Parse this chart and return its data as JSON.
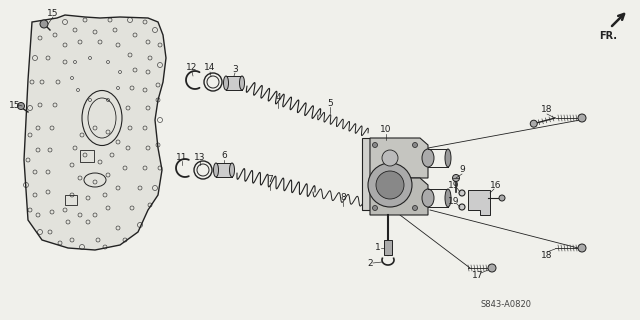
{
  "bg_color": "#f0f0eb",
  "line_color": "#222222",
  "watermark": "S843-A0820",
  "fr_label": "FR.",
  "figsize": [
    6.4,
    3.2
  ],
  "dpi": 100,
  "plate_outline_x": [
    28,
    60,
    70,
    90,
    155,
    168,
    170,
    165,
    160,
    158,
    162,
    158,
    148,
    90,
    60,
    35,
    22,
    20,
    28
  ],
  "plate_outline_y": [
    18,
    18,
    15,
    18,
    18,
    30,
    55,
    80,
    100,
    120,
    150,
    175,
    200,
    245,
    252,
    248,
    225,
    180,
    18
  ]
}
